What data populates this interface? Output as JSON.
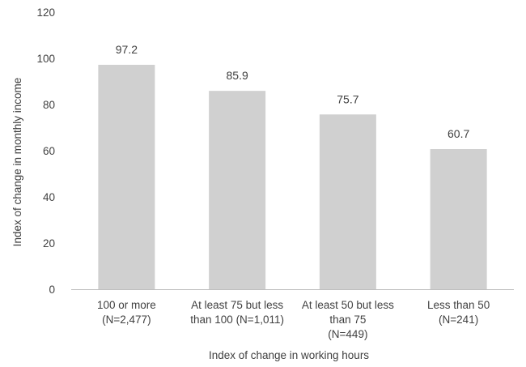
{
  "chart_data": {
    "type": "bar",
    "title": "",
    "xlabel": "Index of change in working hours",
    "ylabel": "Index of change in monthly income",
    "ylim": [
      0,
      120
    ],
    "yticks": [
      0,
      20,
      40,
      60,
      80,
      100,
      120
    ],
    "grid": false,
    "categories": [
      [
        "100 or more",
        "(N=2,477)"
      ],
      [
        "At least 75 but less",
        "than 100 (N=1,011)"
      ],
      [
        "At least 50 but less",
        "than 75",
        "(N=449)"
      ],
      [
        "Less than 50",
        "(N=241)"
      ]
    ],
    "values": [
      97.2,
      85.9,
      75.7,
      60.7
    ],
    "data_labels": [
      "97.2",
      "85.9",
      "75.7",
      "60.7"
    ],
    "bar_color": "#d0d0d0",
    "axis_color": "#bfbfbf"
  }
}
